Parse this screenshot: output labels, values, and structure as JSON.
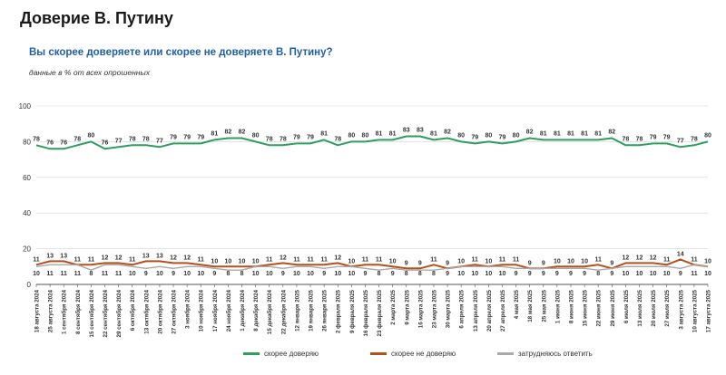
{
  "page": {
    "title": "Доверие В. Путину",
    "subtitle": "Вы скорее доверяете или скорее не доверяете В. Путину?",
    "note": "данные в % от всех опрошенных"
  },
  "colors": {
    "trust": "#2e9e5f",
    "distrust": "#b5501b",
    "unsure": "#a9a9a9",
    "grid": "#d4d4d4",
    "axis": "#555555"
  },
  "chart_data": {
    "type": "line",
    "title": "Доверие В. Путину",
    "subtitle": "Вы скорее доверяете или скорее не доверяете В. Путину?",
    "note": "данные в % от всех опрошенных",
    "ylim": [
      0,
      100
    ],
    "yticks": [
      0,
      20,
      40,
      60,
      80,
      100
    ],
    "grid": true,
    "legend_position": "bottom",
    "categories": [
      "18 августа 2024",
      "25 августа 2024",
      "1 сентября 2024",
      "8 сентября 2024",
      "15 сентября 2024",
      "22 сентября 2024",
      "29 сентября 2024",
      "6 октября 2024",
      "13 октября 2024",
      "20 октября 2024",
      "27 октября 2024",
      "3 ноября 2024",
      "10 ноября 2024",
      "17 ноября 2024",
      "24 ноября 2024",
      "1 декабря 2024",
      "8 декабря 2024",
      "15 декабря 2024",
      "22 декабря 2024",
      "12 января 2025",
      "19 января 2025",
      "26 января 2025",
      "2 февраля 2025",
      "9 февраля 2025",
      "16 февраля 2025",
      "23 февраля 2025",
      "2 марта 2025",
      "9 марта 2025",
      "16 марта 2025",
      "23 марта 2025",
      "30 марта 2025",
      "6 апреля 2025",
      "13 апреля 2025",
      "20 апреля 2025",
      "27 апреля 2025",
      "4 мая 2025",
      "18 мая 2025",
      "25 мая 2025",
      "1 июня 2025",
      "8 июня 2025",
      "15 июня 2025",
      "22 июня 2025",
      "29 июня 2025",
      "6 июля 2025",
      "13 июля 2025",
      "20 июля 2025",
      "27 июля 2025",
      "3 августа 2025",
      "10 августа 2025",
      "17 августа 2025"
    ],
    "series": [
      {
        "name": "скорее доверяю",
        "color": "#2e9e5f",
        "label_side": "above",
        "values": [
          78,
          76,
          76,
          78,
          80,
          76,
          77,
          78,
          78,
          77,
          79,
          79,
          79,
          81,
          82,
          82,
          80,
          78,
          78,
          79,
          79,
          81,
          78,
          80,
          80,
          81,
          81,
          83,
          83,
          81,
          82,
          80,
          79,
          80,
          79,
          80,
          82,
          81,
          81,
          81,
          81,
          81,
          82,
          78,
          78,
          79,
          79,
          77,
          78,
          80
        ]
      },
      {
        "name": "скорее не доверяю",
        "color": "#b5501b",
        "label_side": "above",
        "values": [
          11,
          13,
          13,
          11,
          11,
          12,
          12,
          11,
          13,
          13,
          12,
          12,
          11,
          10,
          10,
          10,
          10,
          11,
          12,
          11,
          11,
          11,
          12,
          10,
          11,
          11,
          10,
          9,
          9,
          11,
          9,
          10,
          11,
          10,
          11,
          11,
          9,
          9,
          10,
          10,
          10,
          11,
          9,
          12,
          12,
          12,
          11,
          14,
          11,
          10
        ]
      },
      {
        "name": "затрудняюсь ответить",
        "color": "#a9a9a9",
        "label_side": "below",
        "values": [
          10,
          11,
          11,
          11,
          8,
          11,
          11,
          10,
          9,
          10,
          9,
          10,
          10,
          9,
          8,
          8,
          10,
          10,
          9,
          10,
          10,
          9,
          10,
          10,
          9,
          8,
          9,
          8,
          8,
          8,
          9,
          10,
          10,
          10,
          10,
          9,
          9,
          9,
          9,
          9,
          9,
          8,
          9,
          10,
          10,
          10,
          10,
          9,
          11,
          10
        ]
      }
    ]
  }
}
